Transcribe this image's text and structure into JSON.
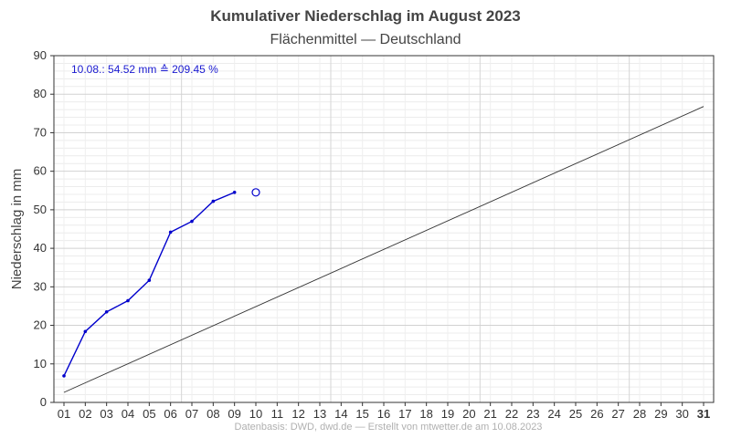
{
  "title": "Kumulativer Niederschlag im August 2023",
  "subtitle": "Flächenmittel — Deutschland",
  "footer": "Datenbasis: DWD, dwd.de — Erstellt von mtwetter.de am 10.08.2023",
  "annotation": "10.08.:  54.52 mm  ≙  209.45 %",
  "chart_data": {
    "type": "line",
    "title": "Kumulativer Niederschlag im August 2023",
    "subtitle": "Flächenmittel — Deutschland",
    "xlabel": "",
    "ylabel": "Niederschlag in mm",
    "xlim": [
      1,
      31
    ],
    "ylim": [
      0,
      90
    ],
    "x_ticks": [
      "01",
      "02",
      "03",
      "04",
      "05",
      "06",
      "07",
      "08",
      "09",
      "10",
      "11",
      "12",
      "13",
      "14",
      "15",
      "16",
      "17",
      "18",
      "19",
      "20",
      "21",
      "22",
      "23",
      "24",
      "25",
      "26",
      "27",
      "28",
      "29",
      "30",
      "31"
    ],
    "y_ticks": [
      0,
      10,
      20,
      30,
      40,
      50,
      60,
      70,
      80,
      90
    ],
    "grid": true,
    "series": [
      {
        "name": "",
        "color": "#0000cc",
        "x": [
          1,
          2,
          3,
          4,
          5,
          6,
          7,
          8,
          9
        ],
        "y": [
          6.9,
          18.4,
          23.5,
          26.4,
          31.7,
          44.2,
          47.0,
          52.2,
          54.52
        ]
      },
      {
        "name": "",
        "color": "#333333",
        "x": [
          1,
          31
        ],
        "y": [
          2.6,
          76.8
        ]
      }
    ],
    "current_point": {
      "x": 10,
      "y": 54.52,
      "color": "#0000cc"
    }
  }
}
